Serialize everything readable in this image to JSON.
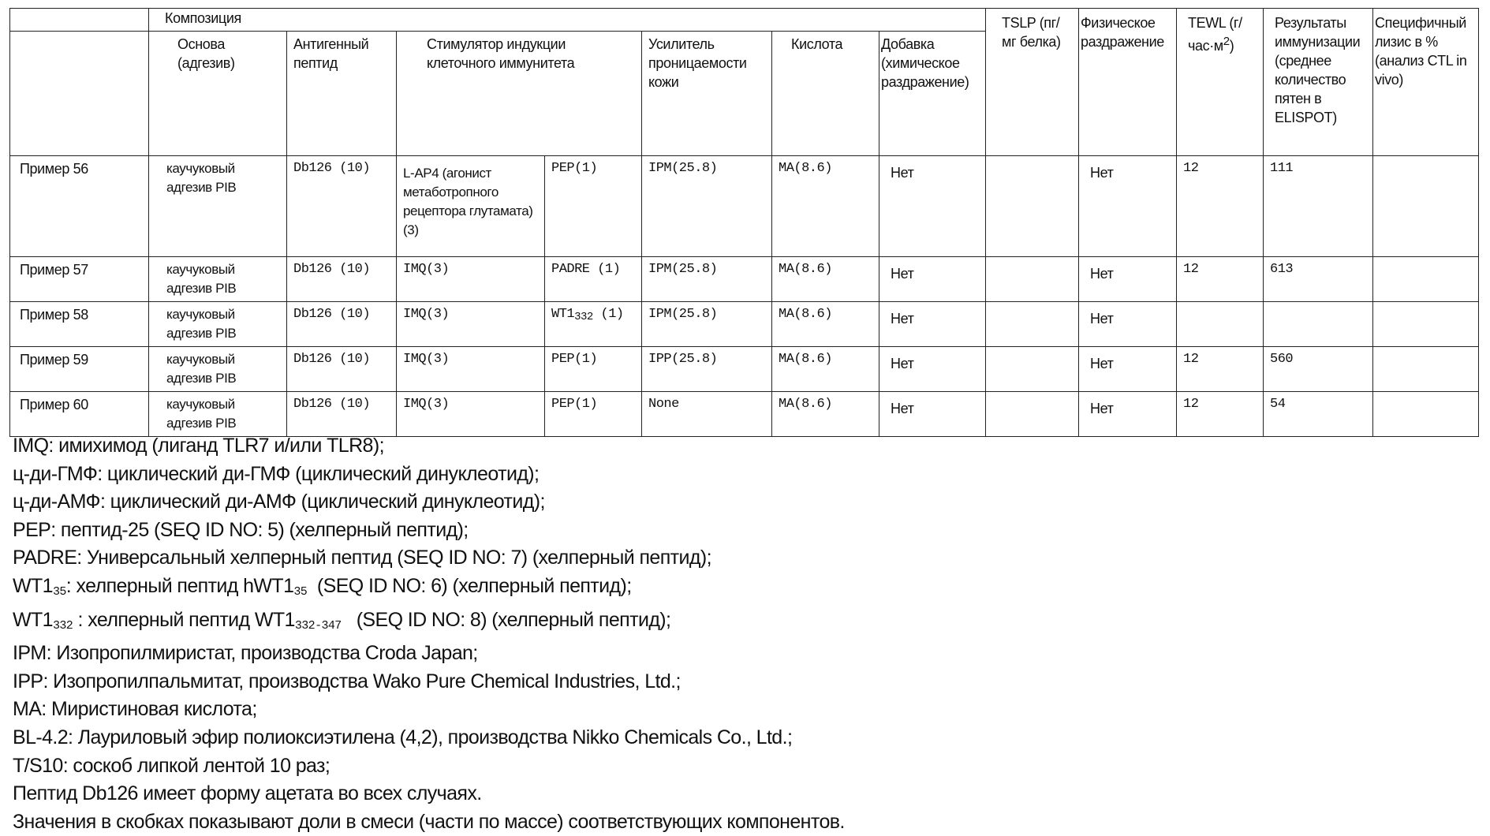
{
  "table": {
    "group_header": "Композиция",
    "headers": {
      "base": "Основа (адгезив)",
      "antigen": "Антигенный пептид",
      "stimulator": "Стимулятор индукции клеточного иммунитета",
      "enhancer": "Усилитель проницаемости кожи",
      "acid": "Кислота",
      "additive": "Добавка (химическое раздражение)",
      "tslp": "TSLP (пг/мг белка)",
      "physical": "Физическое раздражение",
      "tewl": "TEWL (г/час·м",
      "tewl_sup": "2",
      "tewl_end": ")",
      "immunization": "Результаты иммунизации (среднее количество пятен в ELISPOT)",
      "lysis": "Специфичный лизис в % (анализ CTL in vivo)"
    },
    "rows": [
      {
        "example": "Пример 56",
        "base": "каучуковый адгезив PIB",
        "antigen": "Db126 (10)",
        "stim1": "L-AP4 (агонист метаботропного рецептора глутамата) (3)",
        "stim2": "PEP(1)",
        "stim2_sub": "",
        "stim2_end": "",
        "enhancer": "IPM(25.8)",
        "acid": "MA(8.6)",
        "additive": "Нет",
        "tslp": "",
        "physical": "Нет",
        "tewl": "12",
        "immunization": "111",
        "lysis": ""
      },
      {
        "example": "Пример 57",
        "base": "каучуковый адгезив PIB",
        "antigen": "Db126 (10)",
        "stim1": "IMQ(3)",
        "stim2": "PADRE (1)",
        "stim2_sub": "",
        "stim2_end": "",
        "enhancer": "IPM(25.8)",
        "acid": "MA(8.6)",
        "additive": "Нет",
        "tslp": "",
        "physical": "Нет",
        "tewl": "12",
        "immunization": "613",
        "lysis": ""
      },
      {
        "example": "Пример 58",
        "base": "каучуковый адгезив PIB",
        "antigen": "Db126 (10)",
        "stim1": "IMQ(3)",
        "stim2": "WT1",
        "stim2_sub": "332",
        "stim2_end": " (1)",
        "enhancer": "IPM(25.8)",
        "acid": "MA(8.6)",
        "additive": "Нет",
        "tslp": "",
        "physical": "Нет",
        "tewl": "",
        "immunization": "",
        "lysis": ""
      },
      {
        "example": "Пример 59",
        "base": "каучуковый адгезив PIB",
        "antigen": "Db126 (10)",
        "stim1": "IMQ(3)",
        "stim2": "PEP(1)",
        "stim2_sub": "",
        "stim2_end": "",
        "enhancer": "IPP(25.8)",
        "acid": "MA(8.6)",
        "additive": "Нет",
        "tslp": "",
        "physical": "Нет",
        "tewl": "12",
        "immunization": "560",
        "lysis": ""
      },
      {
        "example": "Пример 60",
        "base": "каучуковый адгезив PIB",
        "antigen": "Db126 (10)",
        "stim1": "IMQ(3)",
        "stim2": "PEP(1)",
        "stim2_sub": "",
        "stim2_end": "",
        "enhancer": "None",
        "acid": "MA(8.6)",
        "additive": "Нет",
        "tslp": "",
        "physical": "Нет",
        "tewl": "12",
        "immunization": "54",
        "lysis": ""
      }
    ]
  },
  "footnotes": [
    [
      {
        "t": "IMQ: имихимод (лиганд TLR7 и/или TLR8);"
      }
    ],
    [
      {
        "t": "ц-ди-ГМФ: циклический ди-ГМФ (циклический динуклеотид);"
      }
    ],
    [
      {
        "t": "ц-ди-АМФ: циклический ди-АМФ (циклический динуклеотид);"
      }
    ],
    [
      {
        "t": "PEP: пептид-25 (SEQ ID NO: 5) (хелперный пептид);"
      }
    ],
    [
      {
        "t": "PADRE: Универсальный хелперный пептид (SEQ ID NO: 7) (хелперный пептид);"
      }
    ],
    [
      {
        "t": "WT1"
      },
      {
        "sub": "35"
      },
      {
        "t": ": хелперный пептид hWT1"
      },
      {
        "sub": "35"
      },
      {
        "t": "  (SEQ ID NO: 6) (хелперный пептид);"
      }
    ],
    [
      {
        "t": "WT1"
      },
      {
        "sub": "332"
      },
      {
        "t": " : хелперный пептид WT1"
      },
      {
        "sub": "332-347"
      },
      {
        "t": "   (SEQ ID NO: 8) (хелперный пептид);"
      }
    ],
    [
      {
        "t": "IPM: Изопропилмиристат, производства Croda Japan;"
      }
    ],
    [
      {
        "t": "IPP: Изопропилпальмитат, производства Wako Pure Chemical Industries, Ltd.;"
      }
    ],
    [
      {
        "t": "MA: Миристиновая кислота;"
      }
    ],
    [
      {
        "t": "BL-4.2: Лауриловый эфир полиоксиэтилена (4,2), производства Nikko Chemicals Co., Ltd.;"
      }
    ],
    [
      {
        "t": "T/S10: соскоб липкой лентой 10 раз;"
      }
    ],
    [
      {
        "t": "Пептид Db126 имеет форму ацетата во всех случаях."
      }
    ],
    [
      {
        "t": "Значения в скобках показывают доли в смеси (части по массе) соответствующих компонентов."
      }
    ]
  ]
}
